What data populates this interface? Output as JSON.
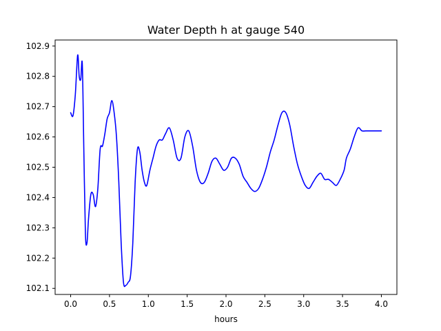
{
  "chart_data": {
    "type": "line",
    "title": "Water Depth h at gauge 540",
    "xlabel": "hours",
    "ylabel": "",
    "xlim": [
      -0.2,
      4.2
    ],
    "ylim": [
      102.08,
      102.92
    ],
    "xticks": [
      0.0,
      0.5,
      1.0,
      1.5,
      2.0,
      2.5,
      3.0,
      3.5,
      4.0
    ],
    "xtick_labels": [
      "0.0",
      "0.5",
      "1.0",
      "1.5",
      "2.0",
      "2.5",
      "3.0",
      "3.5",
      "4.0"
    ],
    "yticks": [
      102.1,
      102.2,
      102.3,
      102.4,
      102.5,
      102.6,
      102.7,
      102.8,
      102.9
    ],
    "ytick_labels": [
      "102.1",
      "102.2",
      "102.3",
      "102.4",
      "102.5",
      "102.6",
      "102.7",
      "102.8",
      "102.9"
    ],
    "grid": false,
    "series": [
      {
        "color": "#0000ff",
        "x": [
          0.0,
          0.03,
          0.06,
          0.09,
          0.11,
          0.13,
          0.15,
          0.17,
          0.19,
          0.21,
          0.23,
          0.26,
          0.29,
          0.32,
          0.35,
          0.38,
          0.41,
          0.44,
          0.47,
          0.5,
          0.53,
          0.56,
          0.59,
          0.62,
          0.65,
          0.68,
          0.71,
          0.74,
          0.77,
          0.8,
          0.83,
          0.86,
          0.89,
          0.92,
          0.95,
          0.98,
          1.02,
          1.06,
          1.1,
          1.14,
          1.18,
          1.22,
          1.27,
          1.32,
          1.37,
          1.42,
          1.47,
          1.52,
          1.57,
          1.62,
          1.67,
          1.72,
          1.77,
          1.82,
          1.87,
          1.92,
          1.97,
          2.02,
          2.07,
          2.12,
          2.17,
          2.22,
          2.27,
          2.32,
          2.37,
          2.42,
          2.47,
          2.52,
          2.57,
          2.62,
          2.67,
          2.72,
          2.77,
          2.82,
          2.87,
          2.92,
          2.97,
          3.02,
          3.07,
          3.12,
          3.17,
          3.22,
          3.27,
          3.32,
          3.37,
          3.42,
          3.47,
          3.52,
          3.55,
          3.6,
          3.65,
          3.7,
          3.75,
          3.8,
          3.85,
          3.9,
          3.95,
          3.98,
          4.0
        ],
        "y": [
          102.68,
          102.67,
          102.74,
          102.87,
          102.8,
          102.79,
          102.84,
          102.55,
          102.28,
          102.25,
          102.33,
          102.41,
          102.41,
          102.37,
          102.43,
          102.56,
          102.57,
          102.61,
          102.66,
          102.68,
          102.72,
          102.68,
          102.6,
          102.45,
          102.25,
          102.12,
          102.11,
          102.12,
          102.14,
          102.25,
          102.45,
          102.56,
          102.55,
          102.49,
          102.45,
          102.44,
          102.49,
          102.53,
          102.57,
          102.59,
          102.59,
          102.61,
          102.63,
          102.59,
          102.53,
          102.53,
          102.6,
          102.62,
          102.57,
          102.49,
          102.45,
          102.45,
          102.48,
          102.52,
          102.53,
          102.51,
          102.49,
          102.5,
          102.53,
          102.53,
          102.51,
          102.47,
          102.45,
          102.43,
          102.42,
          102.43,
          102.46,
          102.5,
          102.55,
          102.59,
          102.64,
          102.68,
          102.68,
          102.64,
          102.57,
          102.51,
          102.47,
          102.44,
          102.43,
          102.45,
          102.47,
          102.48,
          102.46,
          102.46,
          102.45,
          102.44,
          102.46,
          102.49,
          102.53,
          102.56,
          102.6,
          102.63,
          102.62,
          102.62,
          102.62,
          102.62,
          102.62,
          102.62,
          102.62
        ]
      }
    ]
  }
}
